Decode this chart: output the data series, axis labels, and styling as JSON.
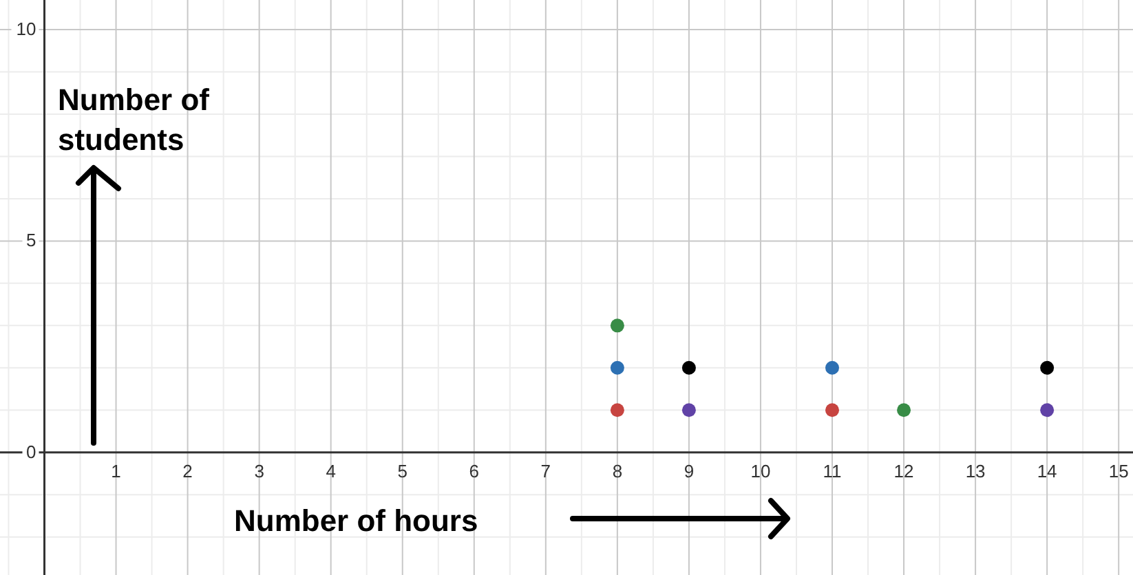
{
  "chart_data": {
    "type": "scatter",
    "xlabel": "Number of hours",
    "ylabel": "Number of students",
    "x": [
      8,
      8,
      8,
      9,
      9,
      11,
      11,
      12,
      14,
      14
    ],
    "values": [
      1,
      2,
      3,
      1,
      2,
      1,
      2,
      1,
      1,
      2
    ],
    "colors": [
      "#c74440",
      "#2d70b3",
      "#388c46",
      "#6042a6",
      "#000000",
      "#c74440",
      "#2d70b3",
      "#388c46",
      "#6042a6",
      "#000000"
    ],
    "marker": "circle",
    "xlim": [
      -0.62,
      15.2
    ],
    "ylim": [
      -2.9,
      10.7
    ],
    "xticks": [
      {
        "value": 0,
        "label": null
      },
      1,
      2,
      3,
      4,
      5,
      6,
      7,
      8,
      9,
      10,
      11,
      12,
      13,
      14,
      15
    ],
    "yticks": [
      0,
      5,
      10
    ],
    "grid": true
  }
}
